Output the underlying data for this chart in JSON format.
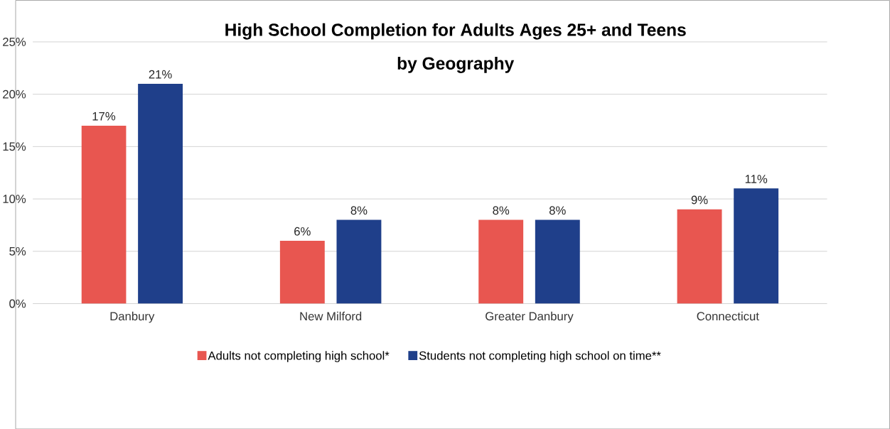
{
  "chart_data": {
    "type": "bar",
    "title": "High School Completion for Adults Ages 25+ and Teens\nby Geography",
    "categories": [
      "Danbury",
      "New Milford",
      "Greater Danbury",
      "Connecticut"
    ],
    "series": [
      {
        "name": "Adults not completing high school*",
        "color": "#e85650",
        "values": [
          17,
          6,
          8,
          9
        ],
        "value_labels": [
          "17%",
          "6%",
          "8%",
          "9%"
        ]
      },
      {
        "name": "Students not completing high school on time**",
        "color": "#1f3f8a",
        "values": [
          21,
          8,
          8,
          11
        ],
        "value_labels": [
          "21%",
          "8%",
          "8%",
          "11%"
        ]
      }
    ],
    "ylim": [
      0,
      25
    ],
    "yticks": [
      {
        "value": 0,
        "label": "0%"
      },
      {
        "value": 5,
        "label": "5%"
      },
      {
        "value": 10,
        "label": "10%"
      },
      {
        "value": 15,
        "label": "15%"
      },
      {
        "value": 20,
        "label": "20%"
      },
      {
        "value": 25,
        "label": "25%"
      }
    ],
    "grid": "y",
    "legend": "bottom"
  }
}
